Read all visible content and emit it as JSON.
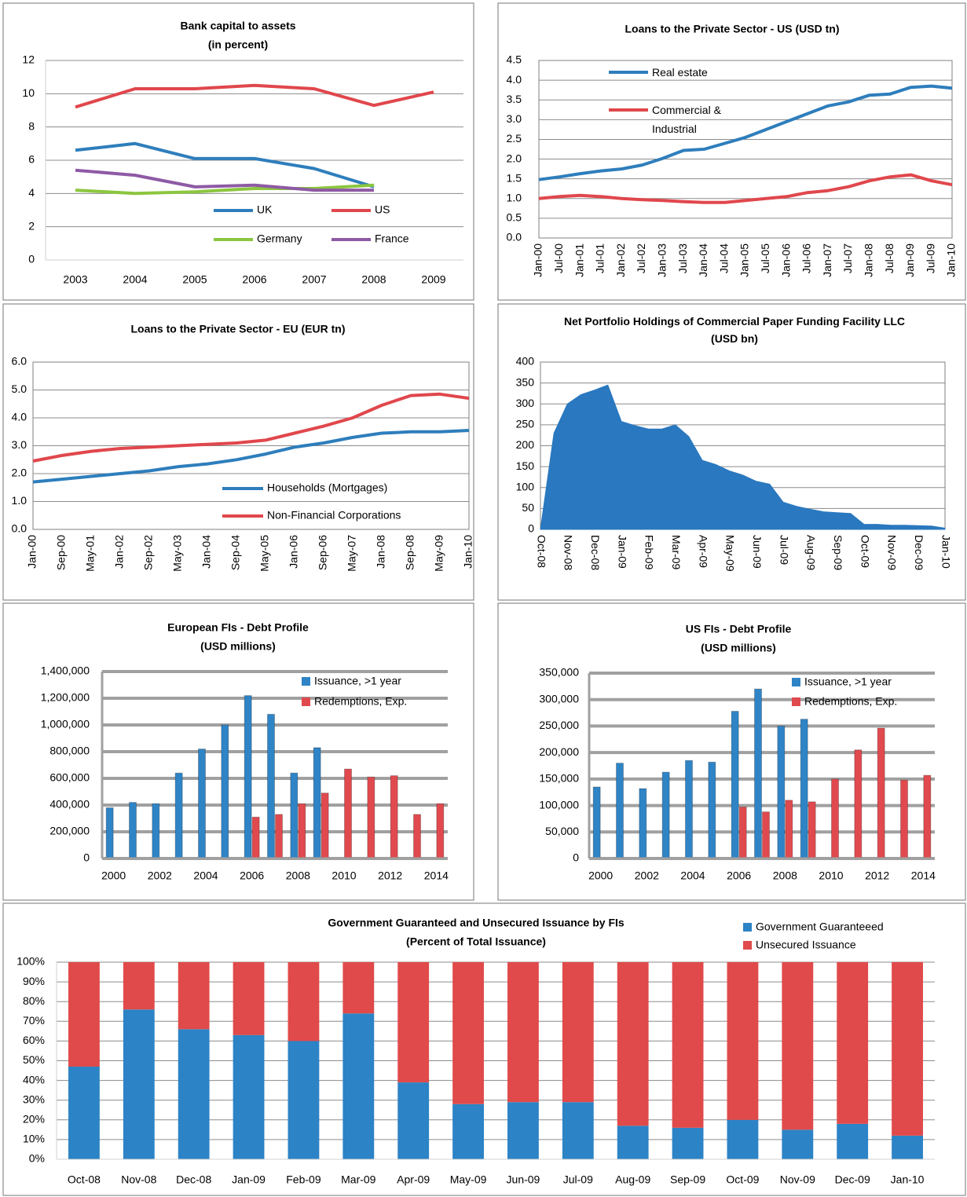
{
  "chart_data": [
    {
      "type": "line",
      "title": "Bank capital to assets",
      "subtitle": "(in percent)",
      "categories": [
        "2003",
        "2004",
        "2005",
        "2006",
        "2007",
        "2008",
        "2009"
      ],
      "series": [
        {
          "name": "UK",
          "color": "#2e7ebc",
          "values": [
            6.6,
            7.0,
            6.1,
            6.1,
            5.5,
            4.4,
            null
          ]
        },
        {
          "name": "US",
          "color": "#e0474c",
          "values": [
            9.2,
            10.3,
            10.3,
            10.5,
            10.3,
            9.3,
            10.1
          ]
        },
        {
          "name": "Germany",
          "color": "#8cc63f",
          "values": [
            4.2,
            4.0,
            4.1,
            4.3,
            4.3,
            4.5,
            null
          ]
        },
        {
          "name": "France",
          "color": "#8e5aa5",
          "values": [
            5.4,
            5.1,
            4.4,
            4.5,
            4.2,
            4.2,
            null
          ]
        }
      ],
      "ylim": [
        0,
        12
      ],
      "yticks": [
        0,
        2,
        4,
        6,
        8,
        10,
        12
      ],
      "grid": true
    },
    {
      "type": "line",
      "title": "Loans to the Private Sector - US (USD tn)",
      "categories": [
        "Jan-00",
        "Jul-00",
        "Jan-01",
        "Jul-01",
        "Jan-02",
        "Jul-02",
        "Jan-03",
        "Jul-03",
        "Jan-04",
        "Jul-04",
        "Jan-05",
        "Jul-05",
        "Jan-06",
        "Jul-06",
        "Jan-07",
        "Jul-07",
        "Jan-08",
        "Jul-08",
        "Jan-09",
        "Jul-09",
        "Jan-10"
      ],
      "series": [
        {
          "name": "Real estate",
          "color": "#2e7ebc",
          "values": [
            1.48,
            1.55,
            1.63,
            1.7,
            1.75,
            1.85,
            2.02,
            2.22,
            2.25,
            2.4,
            2.55,
            2.75,
            2.95,
            3.15,
            3.35,
            3.45,
            3.62,
            3.65,
            3.82,
            3.85,
            3.8
          ]
        },
        {
          "name": "Commercial & Industrial",
          "color": "#e0474c",
          "values": [
            1.0,
            1.05,
            1.08,
            1.05,
            1.0,
            0.97,
            0.95,
            0.92,
            0.9,
            0.9,
            0.95,
            1.0,
            1.05,
            1.15,
            1.2,
            1.3,
            1.45,
            1.55,
            1.6,
            1.45,
            1.35
          ]
        }
      ],
      "ylim": [
        0,
        4.5
      ],
      "yticks": [
        {
          "value": 0,
          "label": "0.0"
        },
        0.5,
        {
          "value": 1,
          "label": "1.0"
        },
        1.5,
        {
          "value": 2,
          "label": "2.0"
        },
        2.5,
        {
          "value": 3,
          "label": "3.0"
        },
        3.5,
        {
          "value": 4,
          "label": "4.0"
        },
        4.5
      ],
      "grid": true
    },
    {
      "type": "line",
      "title": "Loans to the Private Sector - EU (EUR tn)",
      "categories": [
        "Jan-00",
        "Sep-00",
        "May-01",
        "Jan-02",
        "Sep-02",
        "May-03",
        "Jan-04",
        "Sep-04",
        "May-05",
        "Jan-06",
        "Sep-06",
        "May-07",
        "Jan-08",
        "Sep-08",
        "May-09",
        "Jan-10"
      ],
      "series": [
        {
          "name": "Households (Mortgages)",
          "color": "#2e7ebc",
          "values": [
            1.7,
            1.8,
            1.9,
            2.0,
            2.1,
            2.25,
            2.35,
            2.5,
            2.7,
            2.95,
            3.1,
            3.3,
            3.45,
            3.5,
            3.5,
            3.55
          ]
        },
        {
          "name": "Non-Financial Corporations",
          "color": "#e0474c",
          "values": [
            2.45,
            2.65,
            2.8,
            2.9,
            2.95,
            3.0,
            3.05,
            3.1,
            3.2,
            3.45,
            3.7,
            4.0,
            4.45,
            4.8,
            4.85,
            4.7
          ]
        }
      ],
      "ylim": [
        0,
        6
      ],
      "yticks": [
        {
          "value": 0,
          "label": "0.0"
        },
        {
          "value": 1,
          "label": "1.0"
        },
        {
          "value": 2,
          "label": "2.0"
        },
        {
          "value": 3,
          "label": "3.0"
        },
        {
          "value": 4,
          "label": "4.0"
        },
        {
          "value": 5,
          "label": "5.0"
        },
        {
          "value": 6,
          "label": "6.0"
        }
      ],
      "grid": true
    },
    {
      "type": "area",
      "title": "Net Portfolio Holdings of Commercial Paper Funding Facility LLC  (USD bn)",
      "categories": [
        "Oct-08",
        null,
        "Nov-08",
        null,
        "Dec-08",
        null,
        "Jan-09",
        null,
        "Feb-09",
        null,
        "Mar-09",
        null,
        "Apr-09",
        null,
        "May-09",
        null,
        "Jun-09",
        null,
        "Jul-09",
        null,
        "Aug-09",
        null,
        "Sep-09",
        null,
        "Oct-09",
        null,
        "Nov-09",
        null,
        "Dec-09",
        null,
        "Jan-10"
      ],
      "values": [
        0,
        230,
        300,
        322,
        333,
        345,
        258,
        248,
        240,
        240,
        250,
        222,
        165,
        155,
        140,
        130,
        115,
        108,
        65,
        55,
        48,
        42,
        40,
        38,
        12,
        12,
        10,
        10,
        9,
        8,
        3
      ],
      "color": "#2a78bf",
      "ylim": [
        0,
        400
      ],
      "yticks": [
        0,
        50,
        100,
        150,
        200,
        250,
        300,
        350,
        400
      ],
      "grid": true
    },
    {
      "type": "bar",
      "title": "European FIs - Debt Profile",
      "subtitle": "(USD millions)",
      "categories": [
        "2000",
        null,
        "2002",
        null,
        "2004",
        null,
        "2006",
        null,
        "2008",
        null,
        "2010",
        null,
        "2012",
        null,
        "2014"
      ],
      "series": [
        {
          "name": "Issuance, >1 year",
          "color": "#2f84c6",
          "values": [
            380000,
            420000,
            410000,
            640000,
            820000,
            1000000,
            1220000,
            1080000,
            640000,
            830000,
            null,
            null,
            null,
            null,
            null
          ]
        },
        {
          "name": "Redemptions, Exp.",
          "color": "#e04a4e",
          "values": [
            null,
            null,
            null,
            null,
            null,
            null,
            310000,
            330000,
            410000,
            490000,
            670000,
            610000,
            620000,
            330000,
            410000
          ]
        }
      ],
      "ylim": [
        0,
        1400000
      ],
      "yticks": [
        0,
        {
          "value": 200000,
          "label": "200,000"
        },
        {
          "value": 400000,
          "label": "400,000"
        },
        {
          "value": 600000,
          "label": "600,000"
        },
        {
          "value": 800000,
          "label": "800,000"
        },
        {
          "value": 1000000,
          "label": "1,000,000"
        },
        {
          "value": 1200000,
          "label": "1,200,000"
        },
        {
          "value": 1400000,
          "label": "1,400,000"
        }
      ],
      "grid": true
    },
    {
      "type": "bar",
      "title": "US FIs - Debt Profile",
      "subtitle": "(USD millions)",
      "categories": [
        "2000",
        null,
        "2002",
        null,
        "2004",
        null,
        "2006",
        null,
        "2008",
        null,
        "2010",
        null,
        "2012",
        null,
        "2014"
      ],
      "series": [
        {
          "name": "Issuance, >1 year",
          "color": "#2f84c6",
          "values": [
            135000,
            180000,
            132000,
            163000,
            185000,
            182000,
            278000,
            320000,
            250000,
            263000,
            null,
            null,
            null,
            null,
            null
          ]
        },
        {
          "name": "Redemptions, Exp.",
          "color": "#e04a4e",
          "values": [
            null,
            null,
            null,
            null,
            null,
            null,
            97000,
            88000,
            110000,
            107000,
            150000,
            205000,
            246000,
            148000,
            157000
          ]
        }
      ],
      "ylim": [
        0,
        350000
      ],
      "yticks": [
        0,
        {
          "value": 50000,
          "label": "50,000"
        },
        {
          "value": 100000,
          "label": "100,000"
        },
        {
          "value": 150000,
          "label": "150,000"
        },
        {
          "value": 200000,
          "label": "200,000"
        },
        {
          "value": 250000,
          "label": "250,000"
        },
        {
          "value": 300000,
          "label": "300,000"
        },
        {
          "value": 350000,
          "label": "350,000"
        }
      ],
      "grid": true
    },
    {
      "type": "stacked_bar",
      "title": "Government Guaranteed and Unsecured Issuance by FIs",
      "subtitle": "(Percent of Total Issuance)",
      "categories": [
        "Oct-08",
        "Nov-08",
        "Dec-08",
        "Jan-09",
        "Feb-09",
        "Mar-09",
        "Apr-09",
        "May-09",
        "Jun-09",
        "Jul-09",
        "Aug-09",
        "Sep-09",
        "Oct-09",
        "Nov-09",
        "Dec-09",
        "Jan-10"
      ],
      "series": [
        {
          "name": "Government Guaranteeed",
          "color": "#2c83c6",
          "values": [
            47,
            76,
            66,
            63,
            60,
            74,
            39,
            28,
            29,
            29,
            17,
            16,
            20,
            15,
            18,
            12
          ]
        },
        {
          "name": "Unsecured Issuance",
          "color": "#e04a4a",
          "values": [
            53,
            24,
            34,
            37,
            40,
            26,
            61,
            72,
            71,
            71,
            83,
            84,
            80,
            85,
            82,
            88
          ]
        }
      ],
      "ylim": [
        0,
        100
      ],
      "yticks": [
        {
          "value": 0,
          "label": "0%"
        },
        {
          "value": 10,
          "label": "10%"
        },
        {
          "value": 20,
          "label": "20%"
        },
        {
          "value": 30,
          "label": "30%"
        },
        {
          "value": 40,
          "label": "40%"
        },
        {
          "value": 50,
          "label": "50%"
        },
        {
          "value": 60,
          "label": "60%"
        },
        {
          "value": 70,
          "label": "70%"
        },
        {
          "value": 80,
          "label": "80%"
        },
        {
          "value": 90,
          "label": "90%"
        },
        {
          "value": 100,
          "label": "100%"
        }
      ],
      "grid": true
    }
  ]
}
